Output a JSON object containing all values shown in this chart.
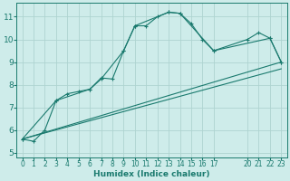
{
  "title": "",
  "xlabel": "Humidex (Indice chaleur)",
  "ylabel": "",
  "background_color": "#ceecea",
  "grid_color": "#aed4d0",
  "line_color": "#1a7a6e",
  "xlim": [
    -0.5,
    23.5
  ],
  "ylim": [
    4.8,
    11.6
  ],
  "yticks": [
    5,
    6,
    7,
    8,
    9,
    10,
    11
  ],
  "xticks": [
    0,
    1,
    2,
    3,
    4,
    5,
    6,
    7,
    8,
    9,
    10,
    11,
    12,
    13,
    14,
    15,
    16,
    17,
    20,
    21,
    22,
    23
  ],
  "curve1_x": [
    0,
    1,
    2,
    3,
    4,
    5,
    6,
    7,
    8,
    9,
    10,
    11,
    12,
    13,
    14,
    15,
    16,
    17,
    20,
    21,
    22,
    23
  ],
  "curve1_y": [
    5.6,
    5.5,
    6.0,
    7.3,
    7.6,
    7.7,
    7.8,
    8.3,
    8.25,
    9.5,
    10.6,
    10.6,
    11.0,
    11.2,
    11.15,
    10.7,
    10.0,
    9.5,
    10.0,
    10.3,
    10.05,
    9.0
  ],
  "curve2_x": [
    0,
    3,
    6,
    7,
    9,
    10,
    13,
    14,
    17,
    22,
    23
  ],
  "curve2_y": [
    5.6,
    7.3,
    7.8,
    8.25,
    9.5,
    10.6,
    11.2,
    11.15,
    9.5,
    10.05,
    9.0
  ],
  "curve3_x": [
    0,
    23
  ],
  "curve3_y": [
    5.6,
    9.0
  ],
  "curve4_x": [
    0,
    23
  ],
  "curve4_y": [
    5.6,
    8.7
  ]
}
